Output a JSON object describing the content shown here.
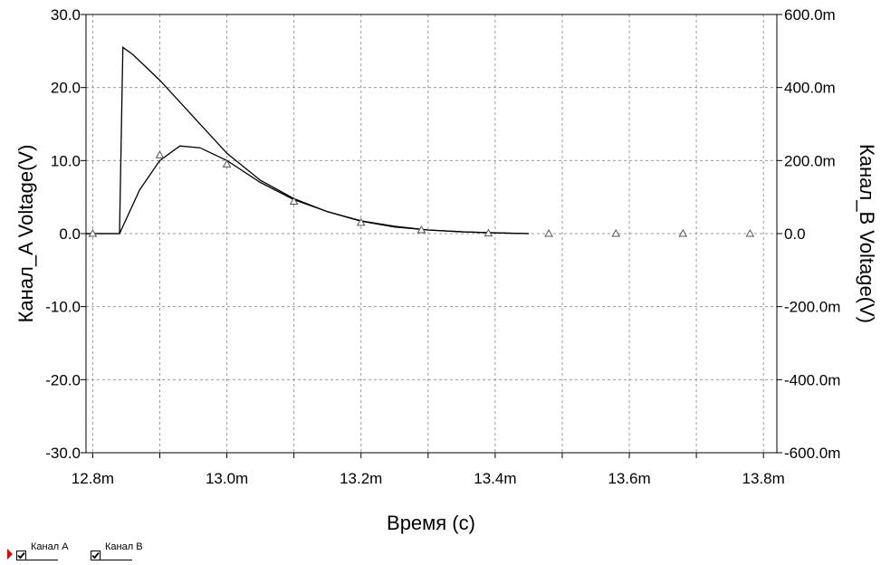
{
  "chart_data": {
    "type": "line",
    "xlabel": "Время (с)",
    "ylabel_left": "Канал_A Voltage(V)",
    "ylabel_right": "Канал_B Voltage(V)",
    "x_ticks": [
      "12.8m",
      "13.0m",
      "13.2m",
      "13.4m",
      "13.6m",
      "13.8m"
    ],
    "y_left_ticks": [
      "30.0",
      "20.0",
      "10.0",
      "0.0",
      "-10.0",
      "-20.0",
      "-30.0"
    ],
    "y_right_ticks": [
      "600.0m",
      "400.0m",
      "200.0m",
      "0.0",
      "-200.0m",
      "-400.0m",
      "-600.0m"
    ],
    "xlim": [
      12.79,
      13.82
    ],
    "ylim_left": [
      -30,
      30
    ],
    "ylim_right": [
      -0.6,
      0.6
    ],
    "grid": true,
    "series": [
      {
        "name": "Канал A",
        "axis": "left",
        "marker": "none",
        "x": [
          12.79,
          12.84,
          12.845,
          12.86,
          12.9,
          12.95,
          13.0,
          13.05,
          13.1,
          13.15,
          13.2,
          13.25,
          13.3,
          13.35,
          13.4,
          13.45
        ],
        "y": [
          0,
          0,
          25.5,
          24.5,
          21.0,
          16.0,
          11.0,
          7.3,
          4.8,
          3.0,
          1.7,
          0.9,
          0.5,
          0.25,
          0.1,
          0
        ]
      },
      {
        "name": "Канал B",
        "axis": "right",
        "marker": "triangle",
        "x": [
          12.79,
          12.84,
          12.87,
          12.9,
          12.93,
          12.96,
          13.0,
          13.05,
          13.1,
          13.15,
          13.2,
          13.25,
          13.3,
          13.35,
          13.4,
          13.45
        ],
        "y": [
          0,
          0,
          0.12,
          0.2,
          0.24,
          0.235,
          0.2,
          0.14,
          0.093,
          0.06,
          0.035,
          0.02,
          0.01,
          0.005,
          0.002,
          0
        ],
        "marker_x": [
          12.8,
          12.9,
          13.0,
          13.1,
          13.2,
          13.29,
          13.39,
          13.48,
          13.58,
          13.68,
          13.78
        ],
        "marker_y": [
          0,
          0.215,
          0.19,
          0.088,
          0.03,
          0.01,
          0.001,
          0,
          0,
          0,
          0
        ]
      }
    ]
  },
  "legend": {
    "items": [
      {
        "label": "Канал A",
        "checked": true
      },
      {
        "label": "Канал B",
        "checked": true
      }
    ]
  }
}
